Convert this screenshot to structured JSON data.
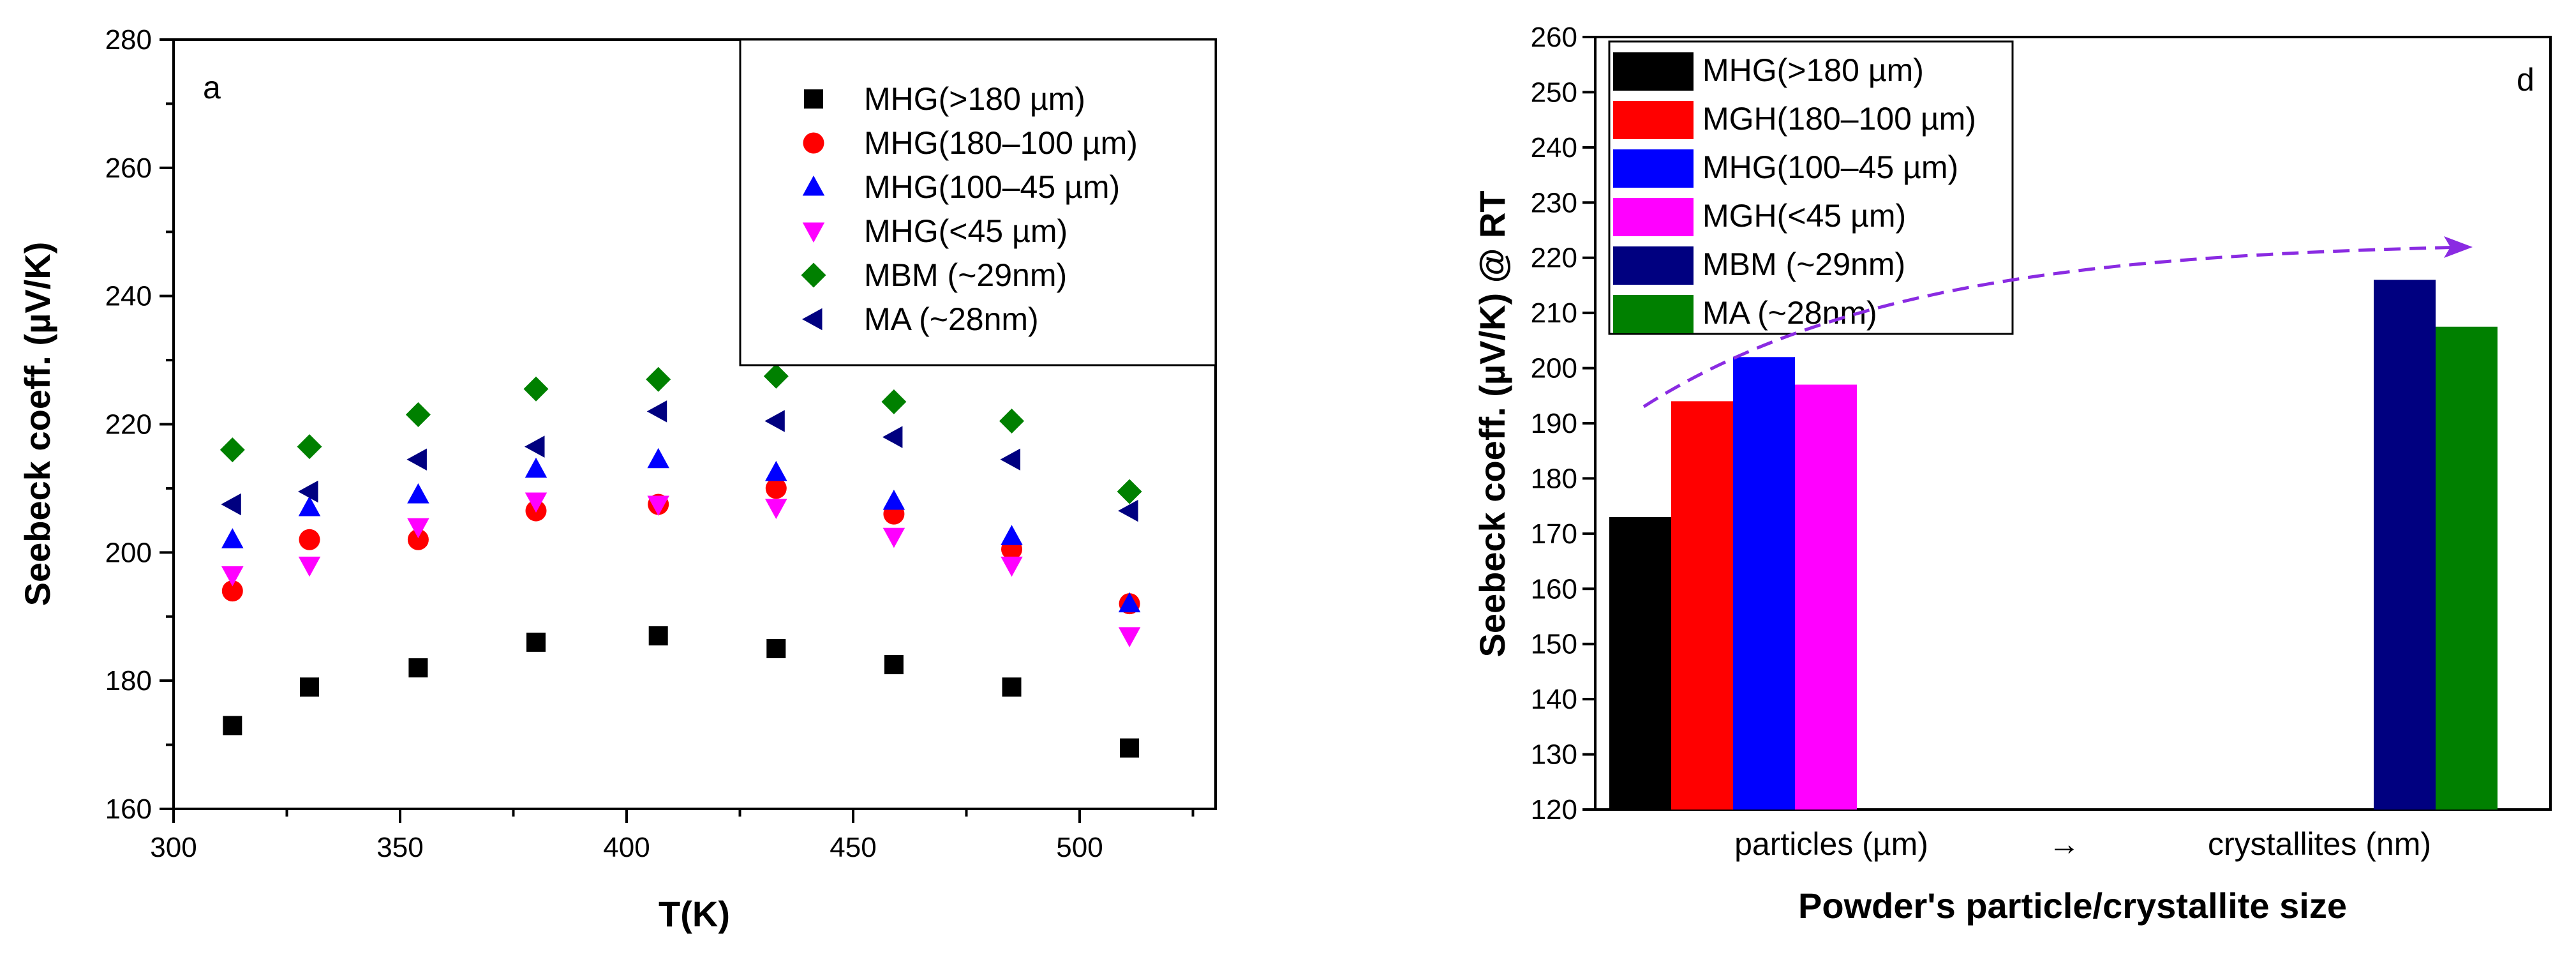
{
  "chart_data": [
    {
      "type": "scatter",
      "panel_label": "a",
      "xlabel": "T(K)",
      "ylabel": "Seebeck coeff. (µV/K)",
      "xlim": [
        300,
        530
      ],
      "ylim": [
        160,
        280
      ],
      "xticks": [
        300,
        350,
        400,
        450,
        500
      ],
      "yticks": [
        160,
        180,
        200,
        220,
        240,
        260,
        280
      ],
      "legend_position": "top-right",
      "series": [
        {
          "name": "MHG(>180 µm)",
          "marker": "square",
          "color": "#000000",
          "x": [
            313,
            330,
            354,
            380,
            407,
            433,
            459,
            485,
            511
          ],
          "y": [
            173,
            179,
            182,
            186,
            187,
            185,
            182.5,
            179,
            169.5
          ]
        },
        {
          "name": "MHG(180–100 µm)",
          "marker": "circle",
          "color": "#ff0000",
          "x": [
            313,
            330,
            354,
            380,
            407,
            433,
            459,
            485,
            511
          ],
          "y": [
            194,
            202,
            202,
            206.5,
            207.5,
            210,
            206,
            200.5,
            192
          ]
        },
        {
          "name": "MHG(100–45 µm)",
          "marker": "triangle-up",
          "color": "#0000ff",
          "x": [
            313,
            330,
            354,
            380,
            407,
            433,
            459,
            485,
            511
          ],
          "y": [
            202,
            207,
            209,
            213,
            214.5,
            212.5,
            208,
            202.5,
            192
          ]
        },
        {
          "name": "MHG(<45 µm)",
          "marker": "triangle-down",
          "color": "#ff00ff",
          "x": [
            313,
            330,
            354,
            380,
            407,
            433,
            459,
            485,
            511
          ],
          "y": [
            196.5,
            198,
            204,
            208,
            207.5,
            207,
            202.5,
            198,
            187
          ]
        },
        {
          "name": "MBM (~29nm)",
          "marker": "diamond",
          "color": "#008000",
          "x": [
            313,
            330,
            354,
            380,
            407,
            433,
            459,
            485,
            511
          ],
          "y": [
            216,
            216.5,
            221.5,
            225.5,
            227,
            227.5,
            223.5,
            220.5,
            209.5
          ]
        },
        {
          "name": "MA (~28nm)",
          "marker": "triangle-left",
          "color": "#000080",
          "x": [
            313,
            330,
            354,
            380,
            407,
            433,
            459,
            485,
            511
          ],
          "y": [
            207.5,
            209.5,
            214.5,
            216.5,
            222,
            220.5,
            218,
            214.5,
            206.5
          ]
        }
      ]
    },
    {
      "type": "bar",
      "panel_label": "d",
      "xlabel": "Powder's particle/crystallite size",
      "ylabel": "Seebeck coeff. (µV/K) @ RT",
      "ylim": [
        120,
        260
      ],
      "yticks": [
        120,
        130,
        140,
        150,
        160,
        170,
        180,
        190,
        200,
        210,
        220,
        230,
        240,
        250,
        260
      ],
      "group_labels": [
        "particles (µm)",
        "crystallites (nm)"
      ],
      "arrow_label": "→",
      "legend_position": "top-left",
      "series": [
        {
          "name": "MHG(>180 µm)",
          "group": 0,
          "value": 173,
          "color": "#000000"
        },
        {
          "name": "MGH(180–100 µm)",
          "group": 0,
          "value": 194,
          "color": "#ff0000"
        },
        {
          "name": "MHG(100–45 µm)",
          "group": 0,
          "value": 202,
          "color": "#0000ff"
        },
        {
          "name": "MGH(<45 µm)",
          "group": 0,
          "value": 197,
          "color": "#ff00ff"
        },
        {
          "name": "MBM (~29nm)",
          "group": 1,
          "value": 216,
          "color": "#000080"
        },
        {
          "name": "MA (~28nm)",
          "group": 1,
          "value": 207.5,
          "color": "#008000"
        }
      ],
      "trend_arrow_color": "#8a2be2"
    }
  ]
}
